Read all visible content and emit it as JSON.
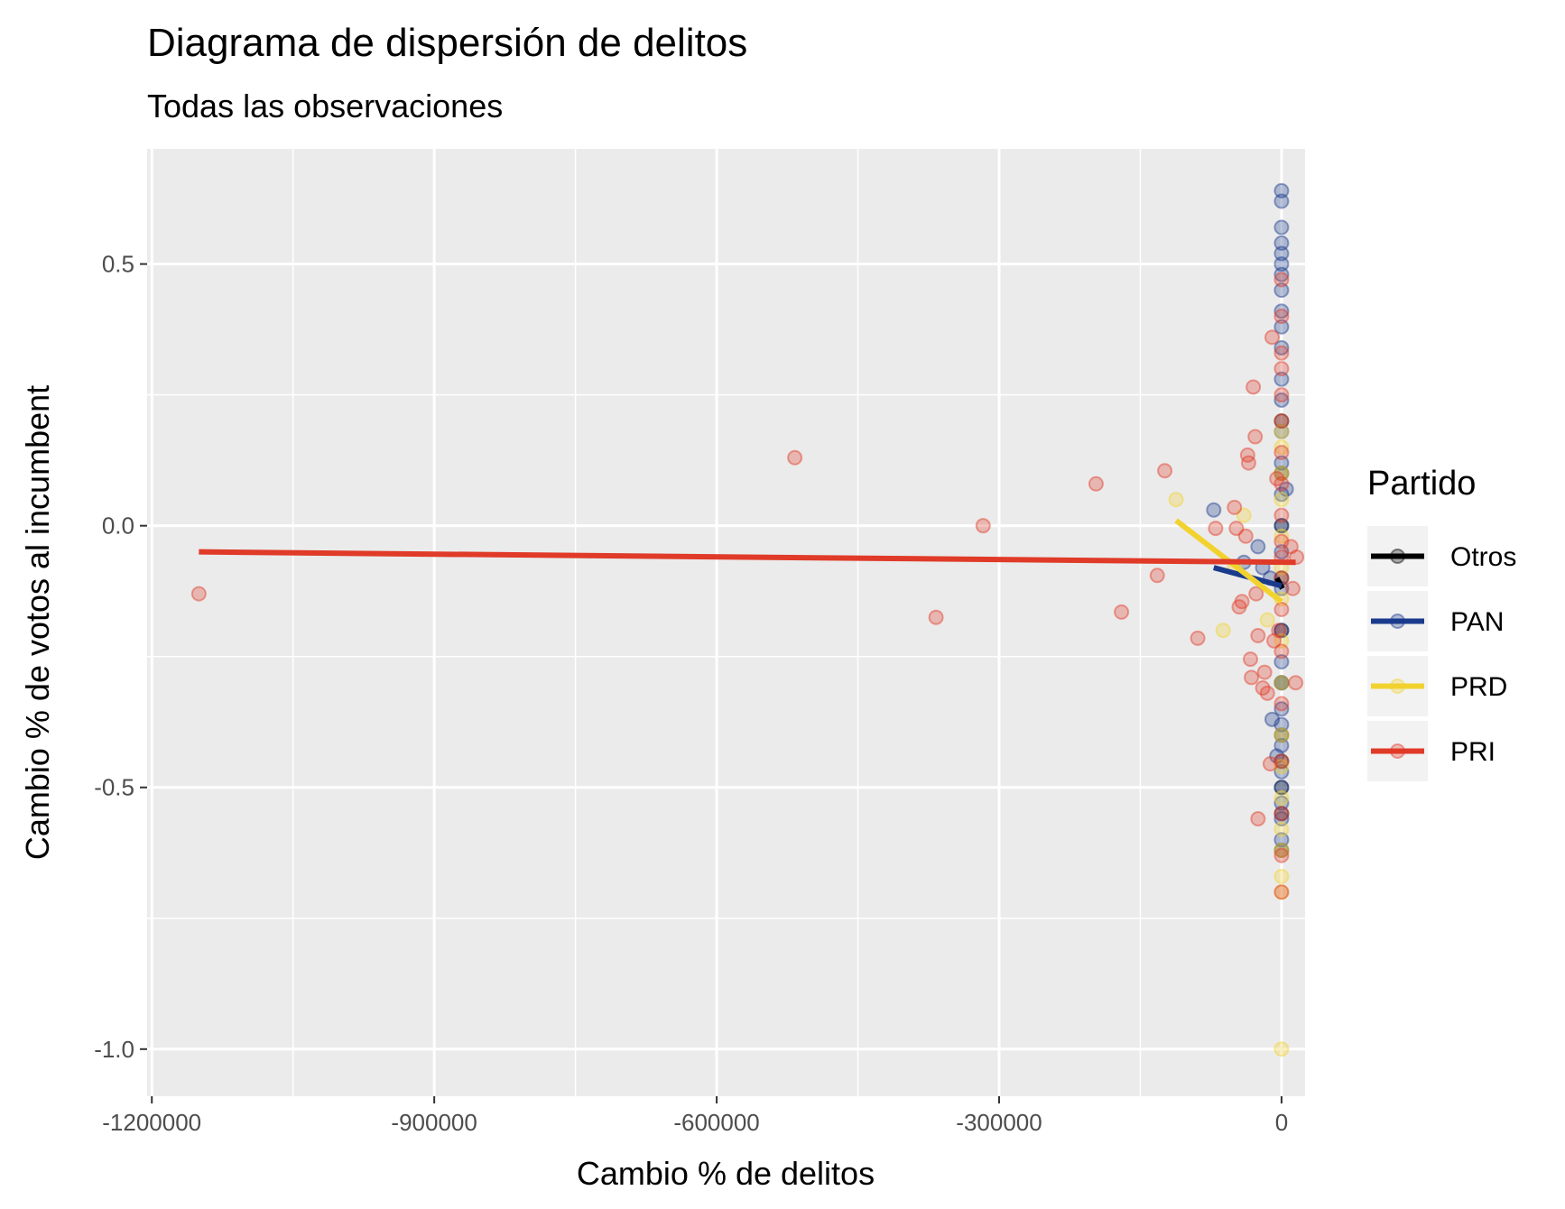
{
  "chart_data": {
    "type": "scatter",
    "title": "Diagrama de dispersión de delitos",
    "subtitle": "Todas las observaciones",
    "xlabel": "Cambio % de delitos",
    "ylabel": "Cambio % de votos al incumbent",
    "xlim": [
      -1205000,
      25000
    ],
    "ylim": [
      -1.09,
      0.72
    ],
    "x_ticks": [
      -1200000,
      -900000,
      -600000,
      -300000,
      0
    ],
    "x_tick_labels": [
      "-1200000",
      "-900000",
      "-600000",
      "-300000",
      "0"
    ],
    "y_ticks": [
      -1.0,
      -0.5,
      0.0,
      0.5
    ],
    "y_tick_labels": [
      "-1.0",
      "-0.5",
      "0.0",
      "0.5"
    ],
    "grid": true,
    "legend": {
      "title": "Partido",
      "position": "right"
    },
    "series": [
      {
        "name": "Otros",
        "color": "#000000",
        "line": [
          [
            -5000,
            -0.1
          ],
          [
            1000,
            -0.12
          ]
        ],
        "points": [
          [
            0,
            -0.62
          ],
          [
            0,
            -0.5
          ],
          [
            0,
            -0.4
          ],
          [
            0,
            -0.3
          ],
          [
            0,
            -0.2
          ],
          [
            0,
            -0.1
          ],
          [
            0,
            0.0
          ],
          [
            0,
            0.1
          ],
          [
            0,
            0.2
          ],
          [
            0,
            -0.55
          ],
          [
            0,
            -0.45
          ]
        ]
      },
      {
        "name": "PAN",
        "color": "#1a3a8c",
        "line": [
          [
            -72000,
            -0.08
          ],
          [
            0,
            -0.115
          ]
        ],
        "points": [
          [
            0,
            0.64
          ],
          [
            0,
            0.62
          ],
          [
            0,
            0.57
          ],
          [
            0,
            0.54
          ],
          [
            0,
            0.52
          ],
          [
            0,
            0.5
          ],
          [
            0,
            0.48
          ],
          [
            0,
            0.45
          ],
          [
            0,
            0.41
          ],
          [
            0,
            0.38
          ],
          [
            0,
            0.34
          ],
          [
            0,
            0.28
          ],
          [
            0,
            0.24
          ],
          [
            0,
            0.18
          ],
          [
            0,
            0.12
          ],
          [
            0,
            0.06
          ],
          [
            0,
            0.0
          ],
          [
            0,
            -0.05
          ],
          [
            0,
            -0.12
          ],
          [
            0,
            -0.2
          ],
          [
            0,
            -0.26
          ],
          [
            0,
            -0.3
          ],
          [
            0,
            -0.35
          ],
          [
            0,
            -0.38
          ],
          [
            0,
            -0.42
          ],
          [
            0,
            -0.47
          ],
          [
            0,
            -0.5
          ],
          [
            0,
            -0.53
          ],
          [
            0,
            -0.56
          ],
          [
            0,
            -0.6
          ],
          [
            -72000,
            0.03
          ],
          [
            -40000,
            -0.07
          ],
          [
            -25000,
            -0.04
          ],
          [
            -20000,
            -0.08
          ],
          [
            -12000,
            -0.1
          ],
          [
            -10000,
            -0.37
          ],
          [
            -5000,
            -0.44
          ],
          [
            5000,
            0.07
          ]
        ]
      },
      {
        "name": "PRD",
        "color": "#f2d22e",
        "line": [
          [
            -112000,
            0.01
          ],
          [
            0,
            -0.145
          ]
        ],
        "points": [
          [
            -112000,
            0.05
          ],
          [
            -62000,
            -0.2
          ],
          [
            -50000,
            -0.08
          ],
          [
            -40000,
            0.02
          ],
          [
            -15000,
            -0.18
          ],
          [
            0,
            0.18
          ],
          [
            0,
            0.15
          ],
          [
            0,
            0.1
          ],
          [
            0,
            0.05
          ],
          [
            0,
            -0.02
          ],
          [
            0,
            -0.08
          ],
          [
            0,
            -0.14
          ],
          [
            0,
            -0.22
          ],
          [
            0,
            -0.3
          ],
          [
            0,
            -0.4
          ],
          [
            0,
            -0.46
          ],
          [
            0,
            -0.52
          ],
          [
            0,
            -0.58
          ],
          [
            0,
            -0.62
          ],
          [
            0,
            -0.67
          ],
          [
            0,
            -0.7
          ],
          [
            0,
            -1.0
          ]
        ]
      },
      {
        "name": "PRI",
        "color": "#e03a28",
        "line": [
          [
            -1150000,
            -0.05
          ],
          [
            15000,
            -0.07
          ]
        ],
        "points": [
          [
            -1150000,
            -0.13
          ],
          [
            -517000,
            0.13
          ],
          [
            -367000,
            -0.175
          ],
          [
            -317000,
            0.0
          ],
          [
            -197000,
            0.08
          ],
          [
            -170000,
            -0.165
          ],
          [
            -132000,
            -0.095
          ],
          [
            -124000,
            0.105
          ],
          [
            -89000,
            -0.215
          ],
          [
            -70000,
            -0.005
          ],
          [
            -50000,
            0.035
          ],
          [
            -48000,
            -0.005
          ],
          [
            -45000,
            -0.155
          ],
          [
            -42000,
            -0.145
          ],
          [
            -38000,
            -0.02
          ],
          [
            -36000,
            0.135
          ],
          [
            -35000,
            0.12
          ],
          [
            -33000,
            -0.255
          ],
          [
            -32000,
            -0.29
          ],
          [
            -30000,
            0.265
          ],
          [
            -28000,
            0.17
          ],
          [
            -27000,
            -0.13
          ],
          [
            -25000,
            -0.21
          ],
          [
            -20000,
            -0.31
          ],
          [
            -18000,
            -0.28
          ],
          [
            -15000,
            -0.32
          ],
          [
            -12000,
            -0.455
          ],
          [
            -10000,
            0.36
          ],
          [
            -8000,
            -0.22
          ],
          [
            -25000,
            -0.56
          ],
          [
            -5000,
            0.09
          ],
          [
            -3000,
            -0.2
          ],
          [
            0,
            0.47
          ],
          [
            0,
            0.4
          ],
          [
            0,
            0.33
          ],
          [
            0,
            0.3
          ],
          [
            0,
            0.25
          ],
          [
            0,
            0.2
          ],
          [
            0,
            0.14
          ],
          [
            0,
            0.08
          ],
          [
            0,
            0.02
          ],
          [
            0,
            -0.03
          ],
          [
            0,
            -0.06
          ],
          [
            0,
            -0.1
          ],
          [
            0,
            -0.16
          ],
          [
            0,
            -0.24
          ],
          [
            0,
            -0.34
          ],
          [
            0,
            -0.45
          ],
          [
            0,
            -0.55
          ],
          [
            0,
            -0.63
          ],
          [
            0,
            -0.7
          ],
          [
            10000,
            -0.04
          ],
          [
            12000,
            -0.12
          ],
          [
            15000,
            -0.3
          ],
          [
            16000,
            -0.06
          ]
        ]
      }
    ]
  }
}
